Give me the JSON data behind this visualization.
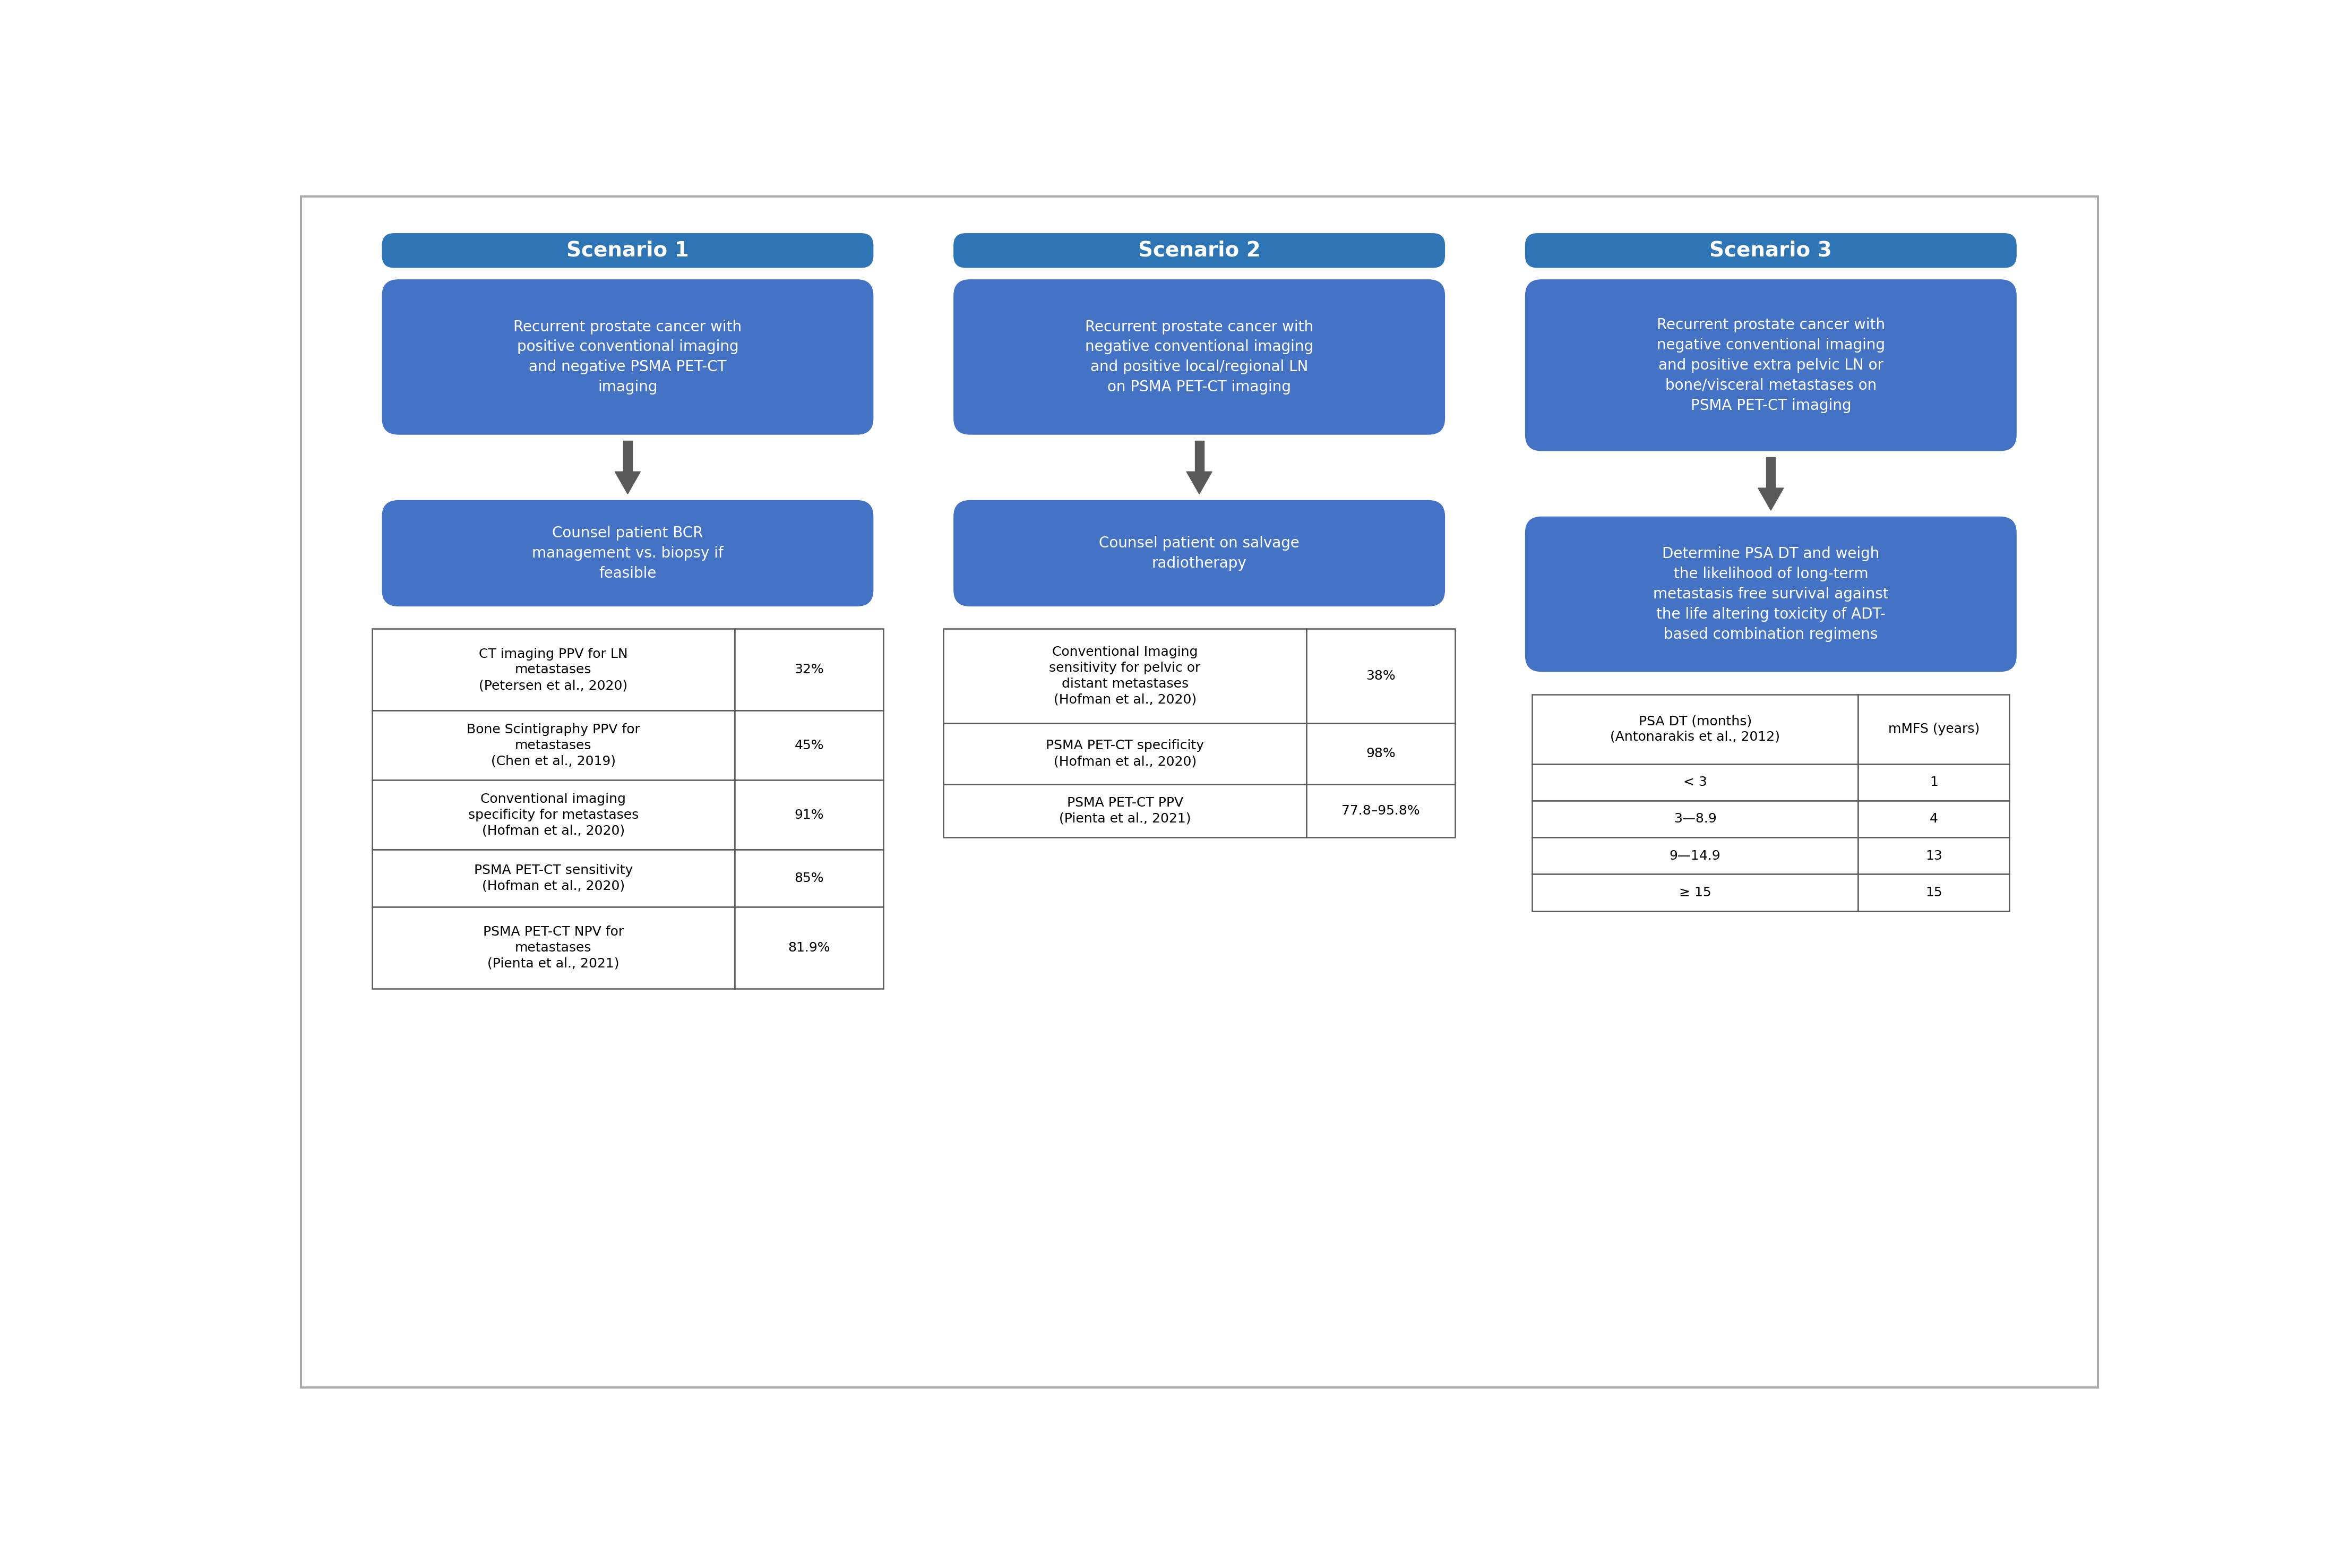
{
  "bg_color": "#ffffff",
  "box_blue_dark": "#2E75B6",
  "box_blue_light": "#4472C4",
  "arrow_color": "#595959",
  "table_border": "#595959",
  "scenarios": [
    {
      "title": "Scenario 1",
      "description": "Recurrent prostate cancer with\npositive conventional imaging\nand negative PSMA PET-CT\nimaging",
      "action": "Counsel patient BCR\nmanagement vs. biopsy if\nfeasible",
      "table_rows": [
        [
          "CT imaging PPV for LN\nmetastases\n(Petersen et al., 2020)",
          "32%"
        ],
        [
          "Bone Scintigraphy PPV for\nmetastases\n(Chen et al., 2019)",
          "45%"
        ],
        [
          "Conventional imaging\nspecificity for metastases\n(Hofman et al., 2020)",
          "91%"
        ],
        [
          "PSMA PET-CT sensitivity\n(Hofman et al., 2020)",
          "85%"
        ],
        [
          "PSMA PET-CT NPV for\nmetastases\n(Pienta et al., 2021)",
          "81.9%"
        ]
      ]
    },
    {
      "title": "Scenario 2",
      "description": "Recurrent prostate cancer with\nnegative conventional imaging\nand positive local/regional LN\non PSMA PET-CT imaging",
      "action": "Counsel patient on salvage\nradiotherapy",
      "table_rows": [
        [
          "Conventional Imaging\nsensitivity for pelvic or\ndistant metastases\n(Hofman et al., 2020)",
          "38%"
        ],
        [
          "PSMA PET-CT specificity\n(Hofman et al., 2020)",
          "98%"
        ],
        [
          "PSMA PET-CT PPV\n(Pienta et al., 2021)",
          "77.8–95.8%"
        ]
      ]
    },
    {
      "title": "Scenario 3",
      "description": "Recurrent prostate cancer with\nnegative conventional imaging\nand positive extra pelvic LN or\nbone/visceral metastases on\nPSMA PET-CT imaging",
      "action": "Determine PSA DT and weigh\nthe likelihood of long-term\nmetastasis free survival against\nthe life altering toxicity of ADT-\nbased combination regimens",
      "table_header": [
        "PSA DT (months)\n(Antonarakis et al., 2012)",
        "mMFS (years)"
      ],
      "table_rows": [
        [
          "< 3",
          "1"
        ],
        [
          "3—8.9",
          "4"
        ],
        [
          "9—14.9",
          "13"
        ],
        [
          "≥ 15",
          "15"
        ]
      ]
    }
  ]
}
